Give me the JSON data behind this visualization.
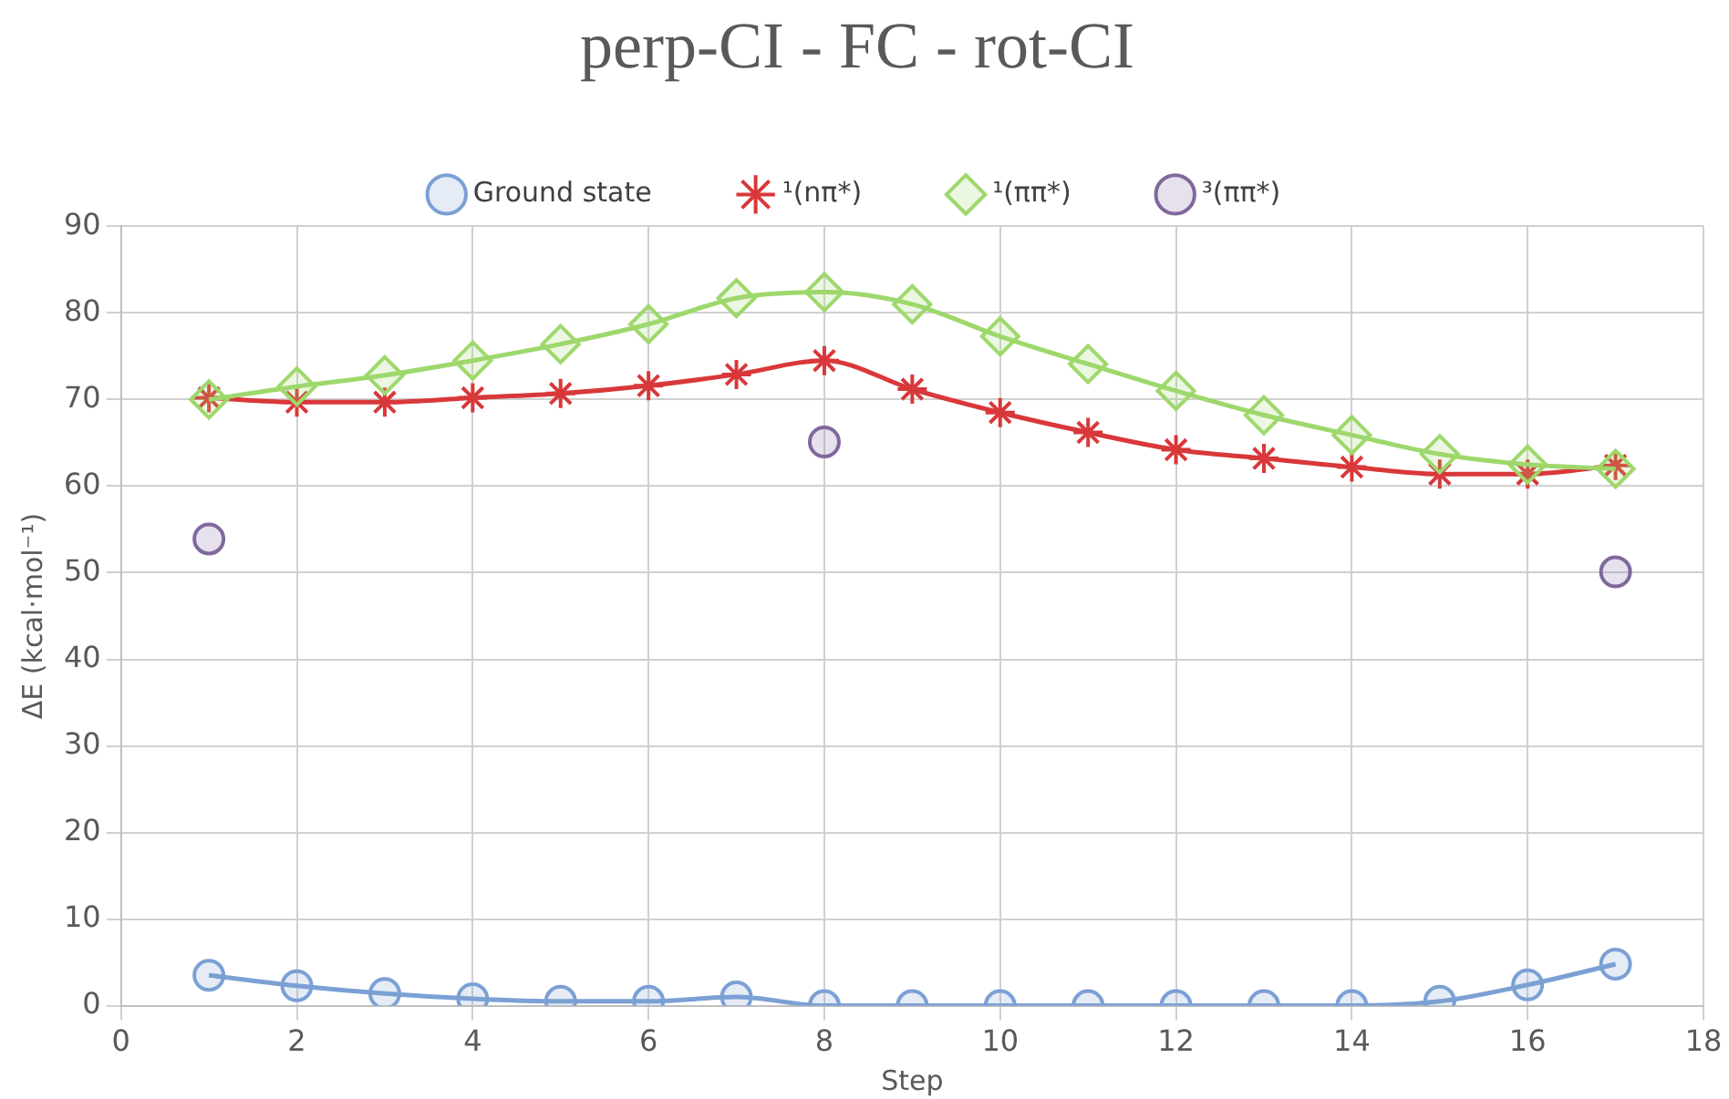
{
  "chart_data": {
    "type": "line",
    "title": "perp-CI - FC - rot-CI",
    "xlabel": "Step",
    "ylabel": "ΔE (kcal·mol⁻¹)",
    "x": [
      1,
      2,
      3,
      4,
      5,
      6,
      7,
      8,
      9,
      10,
      11,
      12,
      13,
      14,
      15,
      16,
      17
    ],
    "xlim": [
      0,
      18
    ],
    "xticks": [
      0,
      2,
      4,
      6,
      8,
      10,
      12,
      14,
      16,
      18
    ],
    "ylim": [
      0,
      90
    ],
    "yticks": [
      0,
      10,
      20,
      30,
      40,
      50,
      60,
      70,
      80,
      90
    ],
    "grid": true,
    "legend": "top",
    "series": [
      {
        "name": "Ground state",
        "color": "#7ba0d4",
        "marker": "circle",
        "values": [
          3.5,
          2.3,
          1.4,
          0.8,
          0.5,
          0.5,
          1.0,
          0,
          0,
          0,
          0,
          0,
          0,
          0,
          0.5,
          2.4,
          4.8
        ]
      },
      {
        "name": "¹(nπ*)",
        "color": "#d9383a",
        "marker": "cross",
        "values": [
          70.2,
          69.7,
          69.7,
          70.2,
          70.7,
          71.6,
          72.9,
          74.5,
          71.2,
          68.5,
          66.2,
          64.2,
          63.2,
          62.2,
          61.4,
          61.4,
          62.4
        ]
      },
      {
        "name": "¹(ππ*)",
        "color": "#9ed86c",
        "marker": "diamond",
        "values": [
          70,
          71.5,
          72.8,
          74.5,
          76.4,
          78.7,
          81.7,
          82.4,
          81.0,
          77.3,
          74.1,
          71.0,
          68.2,
          65.9,
          63.7,
          62.5,
          62.0
        ]
      },
      {
        "name": "³(ππ*)",
        "color": "#80689e",
        "type": "scatter",
        "marker": "circle",
        "x": [
          1,
          8,
          17
        ],
        "values": [
          53.9,
          65.1,
          50.1
        ]
      }
    ]
  }
}
